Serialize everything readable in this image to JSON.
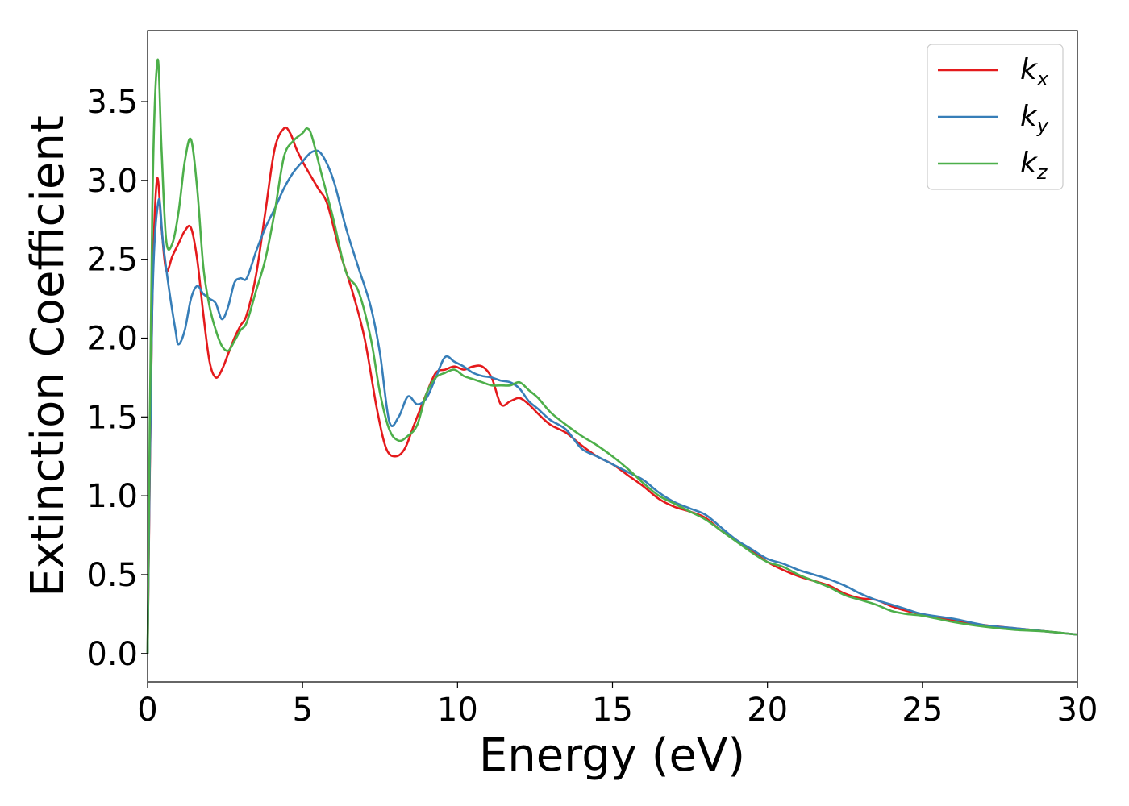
{
  "chart_data": {
    "type": "line",
    "xlabel": "Energy (eV)",
    "ylabel": "Extinction Coefficient",
    "xlim": [
      0,
      30
    ],
    "ylim": [
      -0.18,
      3.95
    ],
    "xticks": [
      0,
      5,
      10,
      15,
      20,
      25,
      30
    ],
    "xtick_labels": [
      "0",
      "5",
      "10",
      "15",
      "20",
      "25",
      "30"
    ],
    "yticks": [
      0.0,
      0.5,
      1.0,
      1.5,
      2.0,
      2.5,
      3.0,
      3.5
    ],
    "ytick_labels": [
      "0.0",
      "0.5",
      "1.0",
      "1.5",
      "2.0",
      "2.5",
      "3.0",
      "3.5"
    ],
    "grid": false,
    "legend_position": "top-right",
    "series": [
      {
        "name": "k_x",
        "label_base": "k",
        "label_sub": "x",
        "color": "#e41a1c",
        "x": [
          0,
          0.15,
          0.3,
          0.45,
          0.6,
          0.8,
          1.0,
          1.2,
          1.4,
          1.6,
          1.8,
          2.0,
          2.2,
          2.4,
          2.6,
          2.8,
          3.0,
          3.2,
          3.5,
          3.8,
          4.1,
          4.4,
          4.6,
          4.8,
          5.0,
          5.2,
          5.5,
          5.8,
          6.2,
          6.6,
          7.0,
          7.4,
          7.7,
          8.0,
          8.3,
          8.6,
          9.0,
          9.3,
          9.6,
          9.9,
          10.2,
          10.5,
          10.8,
          11.1,
          11.4,
          11.7,
          12.0,
          12.3,
          12.6,
          13.0,
          13.5,
          14.0,
          14.5,
          15.0,
          15.5,
          16.0,
          16.5,
          17.0,
          17.5,
          18.0,
          18.5,
          19.0,
          19.5,
          20.0,
          20.5,
          21.0,
          21.5,
          22.0,
          22.5,
          23.0,
          23.5,
          24.0,
          24.5,
          25.0,
          26.0,
          27.0,
          28.0,
          29.0,
          30.0
        ],
        "y": [
          0.0,
          2.2,
          3.0,
          2.7,
          2.43,
          2.52,
          2.6,
          2.68,
          2.7,
          2.5,
          2.15,
          1.85,
          1.75,
          1.8,
          1.9,
          2.0,
          2.08,
          2.15,
          2.4,
          2.8,
          3.2,
          3.33,
          3.3,
          3.2,
          3.12,
          3.05,
          2.95,
          2.85,
          2.55,
          2.3,
          2.0,
          1.55,
          1.3,
          1.25,
          1.3,
          1.45,
          1.65,
          1.78,
          1.8,
          1.82,
          1.8,
          1.82,
          1.82,
          1.75,
          1.58,
          1.6,
          1.62,
          1.58,
          1.52,
          1.45,
          1.4,
          1.32,
          1.25,
          1.2,
          1.13,
          1.06,
          0.98,
          0.93,
          0.9,
          0.86,
          0.78,
          0.72,
          0.65,
          0.58,
          0.53,
          0.49,
          0.46,
          0.43,
          0.38,
          0.35,
          0.34,
          0.3,
          0.27,
          0.25,
          0.21,
          0.18,
          0.16,
          0.14,
          0.12
        ]
      },
      {
        "name": "k_y",
        "label_base": "k",
        "label_sub": "y",
        "color": "#377eb8",
        "x": [
          0,
          0.15,
          0.35,
          0.5,
          0.7,
          0.9,
          1.0,
          1.2,
          1.4,
          1.6,
          1.8,
          2.0,
          2.2,
          2.4,
          2.6,
          2.8,
          3.0,
          3.2,
          3.5,
          3.8,
          4.1,
          4.4,
          4.7,
          5.0,
          5.3,
          5.6,
          6.0,
          6.4,
          6.8,
          7.2,
          7.5,
          7.8,
          8.1,
          8.4,
          8.7,
          9.0,
          9.3,
          9.6,
          9.9,
          10.2,
          10.5,
          10.8,
          11.1,
          11.4,
          11.7,
          12.0,
          12.3,
          12.6,
          13.0,
          13.5,
          14.0,
          14.5,
          15.0,
          15.5,
          16.0,
          16.5,
          17.0,
          17.5,
          18.0,
          18.5,
          19.0,
          19.5,
          20.0,
          20.5,
          21.0,
          21.5,
          22.0,
          22.5,
          23.0,
          23.5,
          24.0,
          24.5,
          25.0,
          26.0,
          27.0,
          28.0,
          29.0,
          30.0
        ],
        "y": [
          0.0,
          2.2,
          2.87,
          2.6,
          2.3,
          2.05,
          1.96,
          2.05,
          2.25,
          2.33,
          2.28,
          2.25,
          2.22,
          2.12,
          2.2,
          2.35,
          2.38,
          2.38,
          2.55,
          2.7,
          2.82,
          2.95,
          3.05,
          3.12,
          3.18,
          3.17,
          3.0,
          2.7,
          2.45,
          2.2,
          1.9,
          1.47,
          1.5,
          1.63,
          1.58,
          1.62,
          1.75,
          1.88,
          1.85,
          1.82,
          1.78,
          1.76,
          1.75,
          1.73,
          1.72,
          1.68,
          1.6,
          1.55,
          1.48,
          1.42,
          1.3,
          1.25,
          1.2,
          1.15,
          1.1,
          1.02,
          0.96,
          0.92,
          0.88,
          0.8,
          0.72,
          0.66,
          0.6,
          0.57,
          0.53,
          0.5,
          0.47,
          0.43,
          0.38,
          0.34,
          0.31,
          0.28,
          0.25,
          0.22,
          0.18,
          0.16,
          0.14,
          0.12
        ]
      },
      {
        "name": "k_z",
        "label_base": "k",
        "label_sub": "z",
        "color": "#4daf4a",
        "x": [
          0,
          0.15,
          0.32,
          0.45,
          0.6,
          0.8,
          1.0,
          1.2,
          1.4,
          1.6,
          1.8,
          2.0,
          2.2,
          2.4,
          2.6,
          2.8,
          3.0,
          3.2,
          3.5,
          3.8,
          4.1,
          4.4,
          4.7,
          5.0,
          5.15,
          5.3,
          5.6,
          6.0,
          6.4,
          6.8,
          7.2,
          7.5,
          7.8,
          8.1,
          8.4,
          8.7,
          9.0,
          9.3,
          9.6,
          9.9,
          10.2,
          10.5,
          10.8,
          11.1,
          11.4,
          11.7,
          12.0,
          12.3,
          12.6,
          13.0,
          13.5,
          14.0,
          14.5,
          15.0,
          15.5,
          16.0,
          16.5,
          17.0,
          17.5,
          18.0,
          18.5,
          19.0,
          19.5,
          20.0,
          20.5,
          21.0,
          21.5,
          22.0,
          22.5,
          23.0,
          23.5,
          24.0,
          24.5,
          25.0,
          26.0,
          27.0,
          28.0,
          29.0,
          30.0
        ],
        "y": [
          0.0,
          2.8,
          3.76,
          3.2,
          2.62,
          2.6,
          2.8,
          3.12,
          3.26,
          2.95,
          2.45,
          2.2,
          2.05,
          1.95,
          1.92,
          1.98,
          2.05,
          2.1,
          2.3,
          2.5,
          2.8,
          3.15,
          3.25,
          3.3,
          3.33,
          3.28,
          3.05,
          2.75,
          2.42,
          2.3,
          2.0,
          1.65,
          1.42,
          1.35,
          1.38,
          1.45,
          1.65,
          1.75,
          1.78,
          1.8,
          1.76,
          1.74,
          1.72,
          1.7,
          1.7,
          1.7,
          1.72,
          1.67,
          1.62,
          1.53,
          1.45,
          1.38,
          1.32,
          1.25,
          1.17,
          1.08,
          1.0,
          0.95,
          0.9,
          0.85,
          0.78,
          0.71,
          0.64,
          0.58,
          0.55,
          0.5,
          0.46,
          0.42,
          0.37,
          0.34,
          0.31,
          0.27,
          0.25,
          0.24,
          0.2,
          0.17,
          0.15,
          0.14,
          0.12
        ]
      }
    ]
  }
}
